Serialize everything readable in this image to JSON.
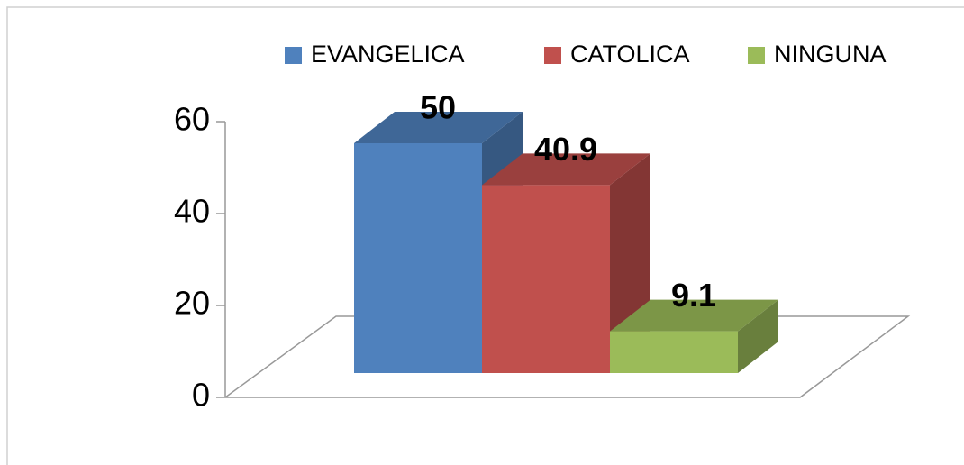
{
  "chart_data": {
    "type": "bar",
    "categories": [
      null
    ],
    "series": [
      {
        "name": "EVANGELICA",
        "color": "#4f81bd",
        "values": [
          50
        ]
      },
      {
        "name": "CATOLICA",
        "color": "#c0504d",
        "values": [
          40.9
        ]
      },
      {
        "name": "NINGUNA",
        "color": "#9bbb59",
        "values": [
          9.1
        ]
      }
    ],
    "ylim": [
      0,
      60
    ],
    "yticks": [
      0,
      20,
      40,
      60
    ],
    "legend": "top"
  }
}
